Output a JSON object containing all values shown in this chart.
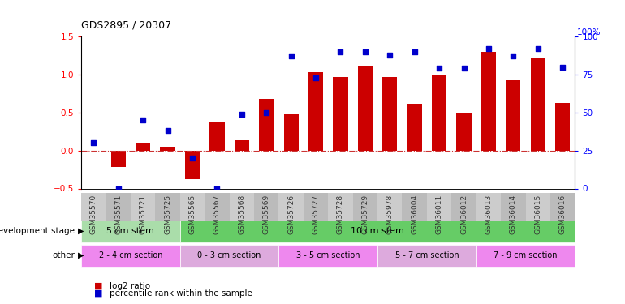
{
  "title": "GDS2895 / 20307",
  "samples": [
    "GSM35570",
    "GSM35571",
    "GSM35721",
    "GSM35725",
    "GSM35565",
    "GSM35567",
    "GSM35568",
    "GSM35569",
    "GSM35726",
    "GSM35727",
    "GSM35728",
    "GSM35729",
    "GSM35978",
    "GSM36004",
    "GSM36011",
    "GSM36012",
    "GSM36013",
    "GSM36014",
    "GSM36015",
    "GSM36016"
  ],
  "log2_ratio": [
    0.0,
    -0.22,
    0.1,
    0.05,
    -0.38,
    0.37,
    0.14,
    0.68,
    0.48,
    1.03,
    0.97,
    1.12,
    0.97,
    0.62,
    1.0,
    0.5,
    1.3,
    0.92,
    1.22,
    0.63
  ],
  "percentile_pct": [
    30,
    0,
    45,
    38,
    20,
    0,
    49,
    50,
    87,
    73,
    90,
    90,
    88,
    90,
    79,
    79,
    92,
    87,
    92,
    80
  ],
  "bar_color": "#cc0000",
  "dot_color": "#0000cc",
  "hline_color": "#cc3333",
  "dotted_line_color": "#000000",
  "ylim_left": [
    -0.5,
    1.5
  ],
  "yticks_left": [
    -0.5,
    0.0,
    0.5,
    1.0,
    1.5
  ],
  "ylim_right": [
    0,
    100
  ],
  "yticks_right": [
    0,
    25,
    50,
    75,
    100
  ],
  "dev_stage_groups": [
    {
      "label": "5 cm stem",
      "start": 0,
      "end": 4,
      "color": "#aaddaa"
    },
    {
      "label": "10 cm stem",
      "start": 4,
      "end": 20,
      "color": "#66cc66"
    }
  ],
  "other_groups": [
    {
      "label": "2 - 4 cm section",
      "start": 0,
      "end": 4,
      "color": "#ee88ee"
    },
    {
      "label": "0 - 3 cm section",
      "start": 4,
      "end": 8,
      "color": "#ddaadd"
    },
    {
      "label": "3 - 5 cm section",
      "start": 8,
      "end": 12,
      "color": "#ee88ee"
    },
    {
      "label": "5 - 7 cm section",
      "start": 12,
      "end": 16,
      "color": "#ddaadd"
    },
    {
      "label": "7 - 9 cm section",
      "start": 16,
      "end": 20,
      "color": "#ee88ee"
    }
  ],
  "bg_color": "#ffffff",
  "tick_label_bg": "#cccccc",
  "tick_label_color": "#333333",
  "row_label_dev": "development stage",
  "row_label_other": "other",
  "legend_log2": "log2 ratio",
  "legend_pct": "percentile rank within the sample"
}
